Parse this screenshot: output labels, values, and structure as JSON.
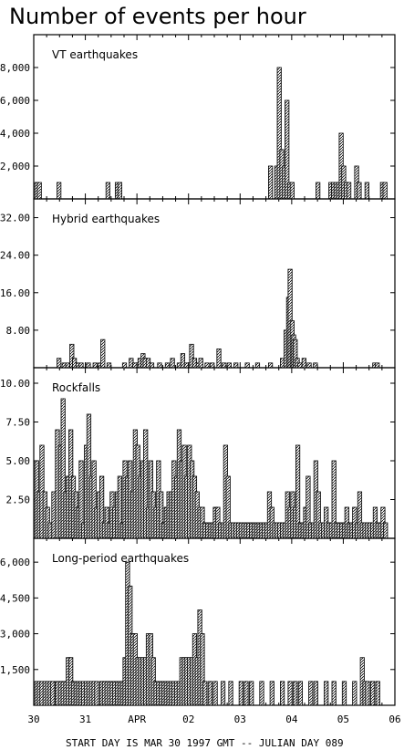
{
  "figure": {
    "title": "Number of events per hour",
    "footer": "START DAY IS MAR 30 1997 GMT    -- JULIAN DAY 089",
    "bar_color": "#000000",
    "background": "#ffffff"
  },
  "chart_data": [
    {
      "type": "bar",
      "title": "VT earthquakes",
      "x_unit": "days since start",
      "ylim": [
        0,
        10000
      ],
      "yticks": [
        2000,
        4000,
        6000,
        8000
      ],
      "ytick_labels": [
        "2,000",
        "4,000",
        "6,000",
        "8,000"
      ],
      "x": [
        0.02,
        0.07,
        0.45,
        1.4,
        1.58,
        1.63,
        4.55,
        4.67,
        4.72,
        4.77,
        4.82,
        4.87,
        4.92,
        4.97,
        5.47,
        5.72,
        5.77,
        5.82,
        5.87,
        5.92,
        5.97,
        6.02,
        6.07,
        6.22,
        6.27,
        6.42,
        6.72,
        6.77
      ],
      "values": [
        1000,
        1000,
        1000,
        1000,
        1000,
        1000,
        2000,
        2000,
        8000,
        3000,
        2000,
        6000,
        1000,
        1000,
        1000,
        1000,
        1000,
        1000,
        1000,
        4000,
        2000,
        1000,
        1000,
        2000,
        1000,
        1000,
        1000,
        1000
      ]
    },
    {
      "type": "bar",
      "title": "Hybrid earthquakes",
      "x_unit": "days since start",
      "ylim": [
        0,
        36
      ],
      "yticks": [
        8,
        16,
        24,
        32
      ],
      "ytick_labels": [
        "8.00",
        "16.00",
        "24.00",
        "32.00"
      ],
      "x": [
        0.45,
        0.55,
        0.62,
        0.7,
        0.75,
        0.82,
        0.88,
        1.02,
        1.15,
        1.25,
        1.3,
        1.42,
        1.72,
        1.85,
        1.92,
        2.02,
        2.08,
        2.12,
        2.18,
        2.25,
        2.4,
        2.55,
        2.65,
        2.78,
        2.85,
        2.92,
        3.02,
        3.08,
        3.15,
        3.2,
        3.32,
        3.42,
        3.55,
        3.65,
        3.75,
        3.88,
        4.1,
        4.3,
        4.55,
        4.78,
        4.85,
        4.9,
        4.93,
        4.97,
        5.0,
        5.03,
        5.07,
        5.12,
        5.2,
        5.3,
        5.42,
        6.57,
        6.62
      ],
      "values": [
        2,
        1,
        1,
        5,
        2,
        1,
        1,
        1,
        1,
        1,
        6,
        1,
        1,
        2,
        1,
        2,
        3,
        2,
        2,
        1,
        1,
        1,
        2,
        1,
        3,
        1,
        5,
        2,
        1,
        2,
        1,
        1,
        4,
        1,
        1,
        1,
        1,
        1,
        1,
        2,
        8,
        15,
        21,
        10,
        7,
        6,
        2,
        1,
        2,
        1,
        1,
        1,
        1
      ]
    },
    {
      "type": "bar",
      "title": "Rockfalls",
      "x_unit": "days since start",
      "ylim": [
        0,
        11
      ],
      "yticks": [
        2.5,
        5,
        7.5,
        10
      ],
      "ytick_labels": [
        "2.50",
        "5.00",
        "7.50",
        "10.00"
      ],
      "x": [
        0.02,
        0.07,
        0.12,
        0.18,
        0.23,
        0.28,
        0.35,
        0.42,
        0.48,
        0.53,
        0.58,
        0.63,
        0.68,
        0.73,
        0.78,
        0.83,
        0.88,
        0.93,
        0.98,
        1.03,
        1.08,
        1.13,
        1.18,
        1.23,
        1.28,
        1.33,
        1.38,
        1.43,
        1.48,
        1.53,
        1.58,
        1.63,
        1.68,
        1.73,
        1.78,
        1.83,
        1.88,
        1.93,
        1.98,
        2.03,
        2.08,
        2.13,
        2.18,
        2.23,
        2.28,
        2.33,
        2.38,
        2.43,
        2.48,
        2.53,
        2.58,
        2.63,
        2.68,
        2.73,
        2.78,
        2.83,
        2.88,
        2.93,
        2.98,
        3.03,
        3.08,
        3.13,
        3.18,
        3.23,
        3.28,
        3.33,
        3.38,
        3.43,
        3.48,
        3.53,
        3.58,
        3.63,
        3.68,
        3.73,
        3.78,
        3.83,
        3.88,
        3.93,
        3.98,
        4.03,
        4.08,
        4.13,
        4.18,
        4.23,
        4.28,
        4.33,
        4.38,
        4.43,
        4.48,
        4.53,
        4.58,
        4.63,
        4.68,
        4.73,
        4.78,
        4.83,
        4.88,
        4.93,
        4.98,
        5.03,
        5.08,
        5.13,
        5.18,
        5.23,
        5.28,
        5.33,
        5.38,
        5.43,
        5.48,
        5.53,
        5.58,
        5.63,
        5.68,
        5.73,
        5.78,
        5.83,
        5.88,
        5.93,
        5.98,
        6.03,
        6.08,
        6.13,
        6.18,
        6.23,
        6.28,
        6.33,
        6.38,
        6.43,
        6.48,
        6.53,
        6.58,
        6.63,
        6.68,
        6.73,
        6.78
      ],
      "values": [
        5,
        3,
        6,
        3,
        2,
        1,
        3,
        7,
        6,
        9,
        3,
        4,
        7,
        4,
        3,
        2,
        5,
        1,
        6,
        8,
        4,
        5,
        2,
        3,
        4,
        1,
        2,
        1,
        3,
        2,
        3,
        4,
        1,
        5,
        4,
        5,
        3,
        7,
        6,
        4,
        5,
        7,
        2,
        5,
        3,
        2,
        5,
        3,
        1,
        2,
        3,
        3,
        5,
        4,
        7,
        5,
        6,
        4,
        6,
        5,
        4,
        3,
        2,
        2,
        1,
        1,
        1,
        1,
        2,
        2,
        1,
        1,
        6,
        4,
        1,
        1,
        1,
        1,
        1,
        1,
        1,
        1,
        1,
        1,
        1,
        1,
        1,
        1,
        1,
        3,
        2,
        1,
        1,
        1,
        1,
        1,
        3,
        2,
        3,
        2,
        6,
        1,
        1,
        2,
        4,
        1,
        1,
        5,
        3,
        1,
        1,
        2,
        1,
        1,
        5,
        1,
        1,
        1,
        1,
        2,
        1,
        1,
        2,
        1,
        3,
        1,
        1,
        1,
        1,
        1,
        2,
        1,
        1,
        2,
        1
      ],
      "hatched": true
    },
    {
      "type": "bar",
      "title": "Long-period earthquakes",
      "x_unit": "days since start",
      "ylim": [
        0,
        7000
      ],
      "yticks": [
        1500,
        3000,
        4500,
        6000
      ],
      "ytick_labels": [
        "1,500",
        "3,000",
        "4,500",
        "6,000"
      ],
      "x": [
        0.02,
        0.07,
        0.12,
        0.18,
        0.23,
        0.28,
        0.33,
        0.42,
        0.48,
        0.53,
        0.58,
        0.63,
        0.68,
        0.73,
        0.78,
        0.83,
        0.88,
        0.93,
        0.98,
        1.03,
        1.08,
        1.13,
        1.18,
        1.28,
        1.33,
        1.38,
        1.43,
        1.48,
        1.53,
        1.58,
        1.63,
        1.68,
        1.73,
        1.78,
        1.83,
        1.88,
        1.93,
        1.98,
        2.03,
        2.08,
        2.13,
        2.18,
        2.23,
        2.28,
        2.33,
        2.38,
        2.43,
        2.48,
        2.53,
        2.58,
        2.63,
        2.68,
        2.73,
        2.78,
        2.83,
        2.88,
        2.93,
        2.98,
        3.03,
        3.08,
        3.13,
        3.18,
        3.23,
        3.28,
        3.38,
        3.48,
        3.63,
        3.78,
        3.98,
        4.08,
        4.18,
        4.38,
        4.58,
        4.78,
        4.93,
        5.03,
        5.13,
        5.33,
        5.43,
        5.63,
        5.78,
        5.98,
        6.18,
        6.33,
        6.38,
        6.43,
        6.53,
        6.63
      ],
      "values": [
        1000,
        1000,
        1000,
        1000,
        1000,
        1000,
        1000,
        1000,
        1000,
        1000,
        1000,
        2000,
        2000,
        1000,
        1000,
        1000,
        1000,
        1000,
        1000,
        1000,
        1000,
        1000,
        1000,
        1000,
        1000,
        1000,
        1000,
        1000,
        1000,
        1000,
        1000,
        1000,
        2000,
        6000,
        5000,
        3000,
        3000,
        2000,
        2000,
        2000,
        2000,
        3000,
        3000,
        2000,
        1000,
        1000,
        1000,
        1000,
        1000,
        1000,
        1000,
        1000,
        1000,
        1000,
        2000,
        2000,
        2000,
        2000,
        2000,
        3000,
        2000,
        4000,
        3000,
        1000,
        1000,
        1000,
        1000,
        1000,
        1000,
        1000,
        1000,
        1000,
        1000,
        1000,
        1000,
        1000,
        1000,
        1000,
        1000,
        1000,
        1000,
        1000,
        1000,
        2000,
        1000,
        1000,
        1000,
        1000
      ]
    }
  ],
  "xaxis": {
    "xlim": [
      0,
      7
    ],
    "ticks": [
      0,
      1,
      2,
      3,
      4,
      5,
      6,
      7
    ],
    "tick_labels": [
      "30",
      "31",
      "APR",
      "02",
      "03",
      "04",
      "05",
      "06"
    ]
  }
}
